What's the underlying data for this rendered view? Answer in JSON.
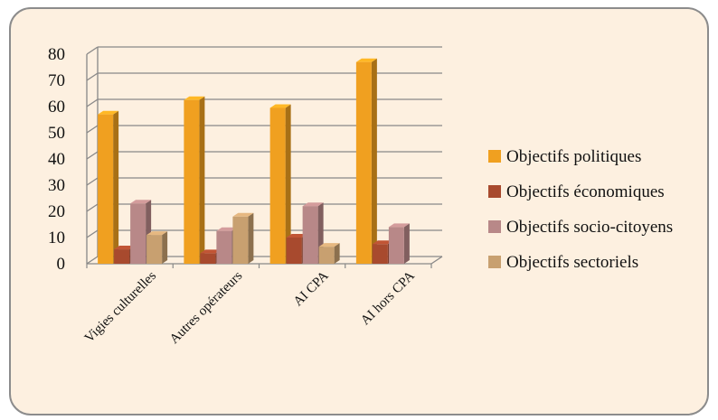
{
  "chart_data": {
    "type": "bar",
    "categories": [
      "Vigies culturelles",
      "Autres opérateurs",
      "AI CPA",
      "AI hors CPA"
    ],
    "series": [
      {
        "name": "Objectifs politiques",
        "color": "#f0a020",
        "values": [
          57,
          62.5,
          59.5,
          77
        ]
      },
      {
        "name": "Objectifs économiques",
        "color": "#a84a2e",
        "values": [
          5.5,
          4,
          10,
          7.5
        ]
      },
      {
        "name": "Objectifs socio-citoyens",
        "color": "#b88888",
        "values": [
          23,
          12.5,
          22,
          14
        ]
      },
      {
        "name": "Objectifs sectoriels",
        "color": "#c8a070",
        "values": [
          11,
          18,
          6.5,
          0
        ]
      }
    ],
    "ylim": [
      0,
      80
    ],
    "yticks": [
      0,
      10,
      20,
      30,
      40,
      50,
      60,
      70,
      80
    ],
    "grid": true,
    "legend_position": "right"
  }
}
